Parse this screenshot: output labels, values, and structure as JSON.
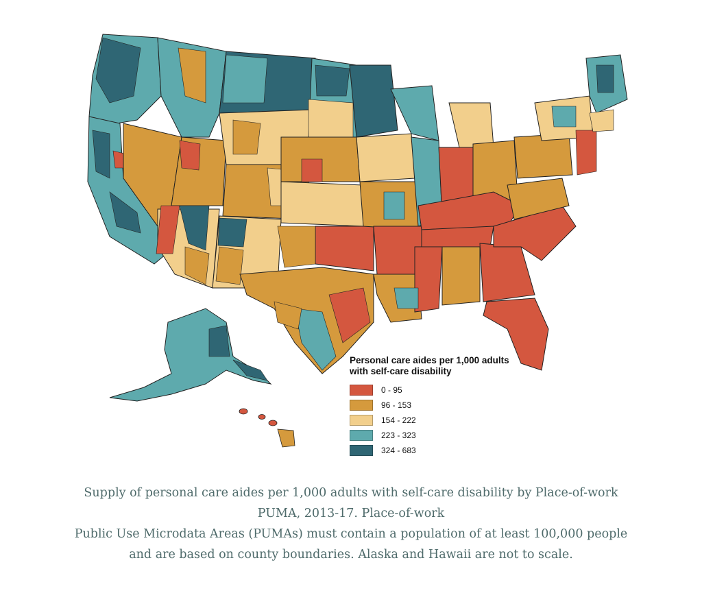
{
  "legend": {
    "title_line1": "Personal care aides per 1,000 adults",
    "title_line2": "with self-care disability",
    "items": [
      {
        "label": "0 - 95",
        "color": "#d4573f"
      },
      {
        "label": "96 - 153",
        "color": "#d59a3d"
      },
      {
        "label": "154 - 222",
        "color": "#f2cf8c"
      },
      {
        "label": "223 - 323",
        "color": "#5eaaad"
      },
      {
        "label": "324 - 683",
        "color": "#2f6674"
      }
    ]
  },
  "caption": {
    "line1": "Supply of personal care aides per 1,000 adults with self-care disability by Place-of-work",
    "line2": "PUMA, 2013-17. Place-of-work",
    "line3": "Public Use Microdata Areas (PUMAs) must contain a population of at least 100,000 people",
    "line4": "and are based on county boundaries. Alaska and Hawaii are not to scale."
  }
}
